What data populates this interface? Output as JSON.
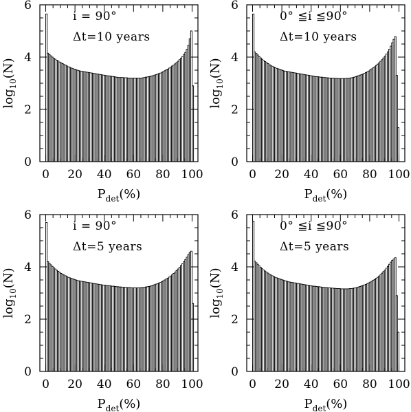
{
  "chart_data": [
    {
      "type": "bar",
      "annotation_lines": [
        "i = 90°",
        "Δt=10 years"
      ],
      "xlabel": "P_det(%)",
      "ylabel": "log10(N)",
      "xlim": [
        -4,
        104
      ],
      "ylim": [
        0,
        6
      ],
      "xticks": [
        "0",
        "20",
        "40",
        "60",
        "80",
        "100"
      ],
      "yticks": [
        "0",
        "2",
        "4",
        "6"
      ],
      "bin_width": 1,
      "bins": [
        0,
        1,
        2,
        3,
        4,
        5,
        6,
        7,
        8,
        9,
        10,
        11,
        12,
        13,
        14,
        15,
        16,
        17,
        18,
        19,
        20,
        21,
        22,
        23,
        24,
        25,
        26,
        27,
        28,
        29,
        30,
        31,
        32,
        33,
        34,
        35,
        36,
        37,
        38,
        39,
        40,
        41,
        42,
        43,
        44,
        45,
        46,
        47,
        48,
        49,
        50,
        51,
        52,
        53,
        54,
        55,
        56,
        57,
        58,
        59,
        60,
        61,
        62,
        63,
        64,
        65,
        66,
        67,
        68,
        69,
        70,
        71,
        72,
        73,
        74,
        75,
        76,
        77,
        78,
        79,
        80,
        81,
        82,
        83,
        84,
        85,
        86,
        87,
        88,
        89,
        90,
        91,
        92,
        93,
        94,
        95,
        96,
        97,
        98,
        99,
        100
      ],
      "values": [
        5.65,
        4.15,
        4.1,
        4.05,
        4.0,
        3.96,
        3.92,
        3.88,
        3.85,
        3.81,
        3.78,
        3.75,
        3.72,
        3.69,
        3.66,
        3.63,
        3.61,
        3.58,
        3.56,
        3.54,
        3.52,
        3.5,
        3.48,
        3.47,
        3.46,
        3.45,
        3.44,
        3.43,
        3.42,
        3.41,
        3.4,
        3.39,
        3.38,
        3.37,
        3.36,
        3.35,
        3.34,
        3.33,
        3.32,
        3.31,
        3.3,
        3.29,
        3.28,
        3.28,
        3.27,
        3.26,
        3.25,
        3.24,
        3.23,
        3.22,
        3.22,
        3.22,
        3.22,
        3.21,
        3.21,
        3.21,
        3.2,
        3.2,
        3.2,
        3.2,
        3.2,
        3.2,
        3.2,
        3.2,
        3.2,
        3.2,
        3.21,
        3.22,
        3.23,
        3.24,
        3.25,
        3.26,
        3.28,
        3.29,
        3.31,
        3.33,
        3.35,
        3.37,
        3.39,
        3.42,
        3.45,
        3.48,
        3.51,
        3.54,
        3.58,
        3.62,
        3.66,
        3.7,
        3.74,
        3.79,
        3.84,
        3.9,
        3.96,
        4.02,
        4.1,
        4.18,
        4.3,
        4.45,
        4.7,
        5.0,
        2.9
      ]
    },
    {
      "type": "bar",
      "annotation_lines": [
        "0° ≦i ≦90°",
        "Δt=10 years"
      ],
      "xlabel": "P_det(%)",
      "ylabel": "log10(N)",
      "xlim": [
        -4,
        104
      ],
      "ylim": [
        0,
        6
      ],
      "xticks": [
        "0",
        "20",
        "40",
        "60",
        "80",
        "100"
      ],
      "yticks": [
        "0",
        "2",
        "4",
        "6"
      ],
      "bin_width": 1,
      "bins": [
        0,
        1,
        2,
        3,
        4,
        5,
        6,
        7,
        8,
        9,
        10,
        11,
        12,
        13,
        14,
        15,
        16,
        17,
        18,
        19,
        20,
        21,
        22,
        23,
        24,
        25,
        26,
        27,
        28,
        29,
        30,
        31,
        32,
        33,
        34,
        35,
        36,
        37,
        38,
        39,
        40,
        41,
        42,
        43,
        44,
        45,
        46,
        47,
        48,
        49,
        50,
        51,
        52,
        53,
        54,
        55,
        56,
        57,
        58,
        59,
        60,
        61,
        62,
        63,
        64,
        65,
        66,
        67,
        68,
        69,
        70,
        71,
        72,
        73,
        74,
        75,
        76,
        77,
        78,
        79,
        80,
        81,
        82,
        83,
        84,
        85,
        86,
        87,
        88,
        89,
        90,
        91,
        92,
        93,
        94,
        95,
        96,
        97,
        98,
        99
      ],
      "values": [
        5.65,
        4.2,
        4.14,
        4.08,
        4.02,
        3.97,
        3.92,
        3.87,
        3.83,
        3.79,
        3.75,
        3.71,
        3.68,
        3.65,
        3.62,
        3.59,
        3.57,
        3.55,
        3.53,
        3.51,
        3.49,
        3.47,
        3.46,
        3.45,
        3.44,
        3.43,
        3.42,
        3.41,
        3.4,
        3.39,
        3.38,
        3.37,
        3.36,
        3.35,
        3.34,
        3.33,
        3.32,
        3.31,
        3.3,
        3.29,
        3.28,
        3.27,
        3.26,
        3.25,
        3.25,
        3.24,
        3.23,
        3.23,
        3.22,
        3.22,
        3.21,
        3.21,
        3.2,
        3.2,
        3.2,
        3.19,
        3.19,
        3.19,
        3.18,
        3.18,
        3.18,
        3.18,
        3.18,
        3.18,
        3.19,
        3.19,
        3.2,
        3.21,
        3.22,
        3.23,
        3.25,
        3.27,
        3.29,
        3.31,
        3.33,
        3.35,
        3.38,
        3.41,
        3.44,
        3.47,
        3.51,
        3.55,
        3.59,
        3.63,
        3.68,
        3.73,
        3.78,
        3.84,
        3.9,
        3.97,
        4.04,
        4.12,
        4.2,
        4.3,
        4.42,
        4.55,
        4.68,
        4.78,
        3.3,
        1.3
      ]
    },
    {
      "type": "bar",
      "annotation_lines": [
        "i = 90°",
        "Δt=5 years"
      ],
      "xlabel": "P_det(%)",
      "ylabel": "log10(N)",
      "xlim": [
        -4,
        104
      ],
      "ylim": [
        0,
        6
      ],
      "xticks": [
        "0",
        "20",
        "40",
        "60",
        "80",
        "100"
      ],
      "yticks": [
        "0",
        "2",
        "4",
        "6"
      ],
      "bin_width": 1,
      "bins": [
        0,
        1,
        2,
        3,
        4,
        5,
        6,
        7,
        8,
        9,
        10,
        11,
        12,
        13,
        14,
        15,
        16,
        17,
        18,
        19,
        20,
        21,
        22,
        23,
        24,
        25,
        26,
        27,
        28,
        29,
        30,
        31,
        32,
        33,
        34,
        35,
        36,
        37,
        38,
        39,
        40,
        41,
        42,
        43,
        44,
        45,
        46,
        47,
        48,
        49,
        50,
        51,
        52,
        53,
        54,
        55,
        56,
        57,
        58,
        59,
        60,
        61,
        62,
        63,
        64,
        65,
        66,
        67,
        68,
        69,
        70,
        71,
        72,
        73,
        74,
        75,
        76,
        77,
        78,
        79,
        80,
        81,
        82,
        83,
        84,
        85,
        86,
        87,
        88,
        89,
        90,
        91,
        92,
        93,
        94,
        95,
        96,
        97,
        98,
        99,
        100
      ],
      "values": [
        5.7,
        4.2,
        4.14,
        4.08,
        4.02,
        3.97,
        3.92,
        3.87,
        3.83,
        3.79,
        3.75,
        3.72,
        3.69,
        3.66,
        3.63,
        3.6,
        3.58,
        3.56,
        3.54,
        3.52,
        3.5,
        3.48,
        3.47,
        3.46,
        3.45,
        3.44,
        3.43,
        3.42,
        3.41,
        3.4,
        3.39,
        3.38,
        3.37,
        3.36,
        3.35,
        3.34,
        3.33,
        3.32,
        3.31,
        3.3,
        3.3,
        3.29,
        3.28,
        3.28,
        3.27,
        3.26,
        3.26,
        3.25,
        3.24,
        3.24,
        3.23,
        3.23,
        3.22,
        3.22,
        3.22,
        3.21,
        3.21,
        3.21,
        3.2,
        3.2,
        3.2,
        3.2,
        3.2,
        3.2,
        3.2,
        3.21,
        3.21,
        3.22,
        3.23,
        3.24,
        3.25,
        3.26,
        3.28,
        3.3,
        3.32,
        3.34,
        3.36,
        3.38,
        3.41,
        3.44,
        3.47,
        3.5,
        3.54,
        3.57,
        3.61,
        3.65,
        3.7,
        3.75,
        3.8,
        3.86,
        3.92,
        3.98,
        4.05,
        4.12,
        4.2,
        4.28,
        4.37,
        4.47,
        4.55,
        4.6,
        2.6
      ]
    },
    {
      "type": "bar",
      "annotation_lines": [
        "0° ≦i ≦90°",
        "Δt=5 years"
      ],
      "xlabel": "P_det(%)",
      "ylabel": "log10(N)",
      "xlim": [
        -4,
        104
      ],
      "ylim": [
        0,
        6
      ],
      "xticks": [
        "0",
        "20",
        "40",
        "60",
        "80",
        "100"
      ],
      "yticks": [
        "0",
        "2",
        "4",
        "6"
      ],
      "bin_width": 1,
      "bins": [
        0,
        1,
        2,
        3,
        4,
        5,
        6,
        7,
        8,
        9,
        10,
        11,
        12,
        13,
        14,
        15,
        16,
        17,
        18,
        19,
        20,
        21,
        22,
        23,
        24,
        25,
        26,
        27,
        28,
        29,
        30,
        31,
        32,
        33,
        34,
        35,
        36,
        37,
        38,
        39,
        40,
        41,
        42,
        43,
        44,
        45,
        46,
        47,
        48,
        49,
        50,
        51,
        52,
        53,
        54,
        55,
        56,
        57,
        58,
        59,
        60,
        61,
        62,
        63,
        64,
        65,
        66,
        67,
        68,
        69,
        70,
        71,
        72,
        73,
        74,
        75,
        76,
        77,
        78,
        79,
        80,
        81,
        82,
        83,
        84,
        85,
        86,
        87,
        88,
        89,
        90,
        91,
        92,
        93,
        94,
        95,
        96,
        97,
        98,
        99
      ],
      "values": [
        5.75,
        4.22,
        4.16,
        4.1,
        4.04,
        3.98,
        3.93,
        3.88,
        3.84,
        3.8,
        3.76,
        3.72,
        3.69,
        3.66,
        3.63,
        3.6,
        3.58,
        3.56,
        3.54,
        3.52,
        3.5,
        3.48,
        3.46,
        3.45,
        3.43,
        3.42,
        3.41,
        3.4,
        3.39,
        3.38,
        3.37,
        3.36,
        3.35,
        3.34,
        3.33,
        3.32,
        3.31,
        3.3,
        3.29,
        3.28,
        3.27,
        3.26,
        3.26,
        3.25,
        3.24,
        3.24,
        3.23,
        3.22,
        3.22,
        3.21,
        3.21,
        3.2,
        3.2,
        3.19,
        3.19,
        3.18,
        3.18,
        3.17,
        3.17,
        3.17,
        3.16,
        3.16,
        3.16,
        3.16,
        3.16,
        3.16,
        3.17,
        3.17,
        3.18,
        3.19,
        3.2,
        3.21,
        3.23,
        3.25,
        3.27,
        3.29,
        3.31,
        3.33,
        3.36,
        3.39,
        3.42,
        3.45,
        3.49,
        3.52,
        3.56,
        3.6,
        3.65,
        3.7,
        3.76,
        3.82,
        3.88,
        3.95,
        4.02,
        4.1,
        4.18,
        4.25,
        4.3,
        4.35,
        2.9,
        1.5
      ]
    }
  ]
}
